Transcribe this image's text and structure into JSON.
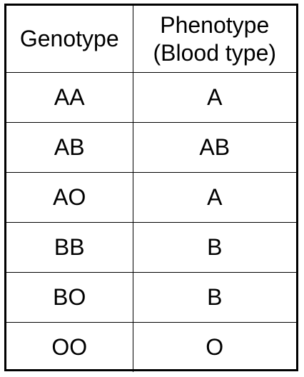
{
  "table": {
    "headers": {
      "genotype": "Genotype",
      "phenotype_line1": "Phenotype",
      "phenotype_line2": "(Blood type)"
    },
    "rows": [
      {
        "genotype": "AA",
        "phenotype": "A"
      },
      {
        "genotype": "AB",
        "phenotype": "AB"
      },
      {
        "genotype": "AO",
        "phenotype": "A"
      },
      {
        "genotype": "BB",
        "phenotype": "B"
      },
      {
        "genotype": "BO",
        "phenotype": "B"
      },
      {
        "genotype": "OO",
        "phenotype": "O"
      }
    ]
  },
  "colors": {
    "border": "#000000",
    "text": "#000000",
    "background": "#ffffff"
  }
}
